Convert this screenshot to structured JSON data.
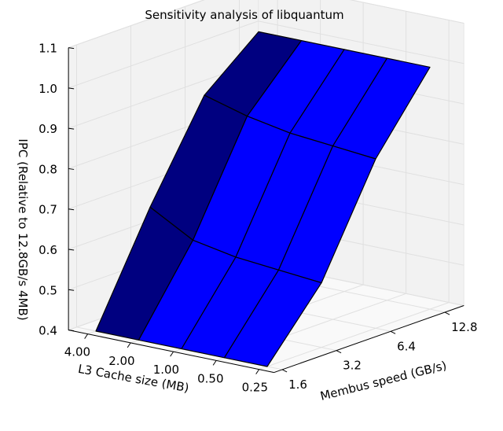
{
  "chart_data": {
    "type": "surface3d",
    "title": "Sensitivity analysis of libquantum",
    "xlabel": "Membus speed (GB/s)",
    "ylabel": "L3 Cache size (MB)",
    "zlabel": "IPC (Relative to 12.8GB/s 4MB)",
    "membus_ticks": [
      "1.6",
      "3.2",
      "6.4",
      "12.8"
    ],
    "cache_ticks": [
      "4.00",
      "2.00",
      "1.00",
      "0.50",
      "0.25"
    ],
    "ipc_ticks": [
      "0.4",
      "0.5",
      "0.6",
      "0.7",
      "0.8",
      "0.9",
      "1.0",
      "1.1"
    ],
    "zlim": [
      0.4,
      1.1
    ],
    "membus_values": [
      1.6,
      3.2,
      6.4,
      12.8
    ],
    "cache_values": [
      4.0,
      2.0,
      1.0,
      0.5,
      0.25
    ],
    "ipc_grid": [
      [
        0.4,
        0.66,
        0.89,
        1.0
      ],
      [
        0.4,
        0.6,
        0.86,
        1.0
      ],
      [
        0.4,
        0.58,
        0.84,
        1.0
      ],
      [
        0.4,
        0.57,
        0.83,
        1.0
      ],
      [
        0.4,
        0.56,
        0.82,
        1.0
      ]
    ],
    "colors": {
      "dark": "#000080",
      "bright": "#0000ff",
      "pane": "#f2f2f2",
      "grid": "#e0e0e0"
    }
  }
}
